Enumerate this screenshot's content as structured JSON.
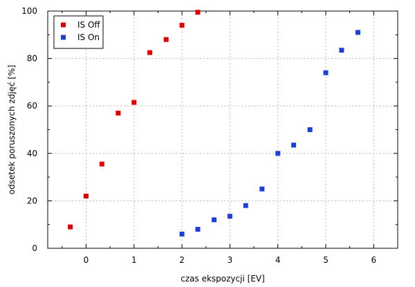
{
  "chart_data": {
    "type": "scatter",
    "title": "",
    "xlabel": "czas ekspozycji [EV]",
    "ylabel": "odsetek poruszonych zdjęć [%]",
    "xlim": [
      -0.8,
      6.5
    ],
    "ylim": [
      0,
      100
    ],
    "x_ticks": [
      0,
      1,
      2,
      3,
      4,
      5,
      6
    ],
    "y_ticks": [
      0,
      20,
      40,
      60,
      80,
      100
    ],
    "x_minor_ticks": [
      -0.5,
      0.5,
      1.5,
      2.5,
      3.5,
      4.5,
      5.5
    ],
    "y_minor_ticks": [
      10,
      30,
      50,
      70,
      90
    ],
    "grid": true,
    "legend_position": "top-left",
    "series": [
      {
        "name": "IS Off",
        "color": "#e00000",
        "marker": "square",
        "x": [
          -0.33,
          0,
          0.33,
          0.67,
          1,
          1.33,
          1.67,
          2,
          2.33
        ],
        "y": [
          9,
          22,
          35.5,
          57,
          61.5,
          82.5,
          88,
          94,
          99.5
        ]
      },
      {
        "name": "IS On",
        "color": "#1c3fd8",
        "marker": "square",
        "x": [
          2,
          2.33,
          2.67,
          3,
          3.33,
          3.67,
          4,
          4.33,
          4.67,
          5,
          5.33,
          5.67
        ],
        "y": [
          6,
          8,
          12,
          13.5,
          18,
          25,
          40,
          43.5,
          50,
          74,
          83.5,
          91
        ]
      }
    ]
  }
}
